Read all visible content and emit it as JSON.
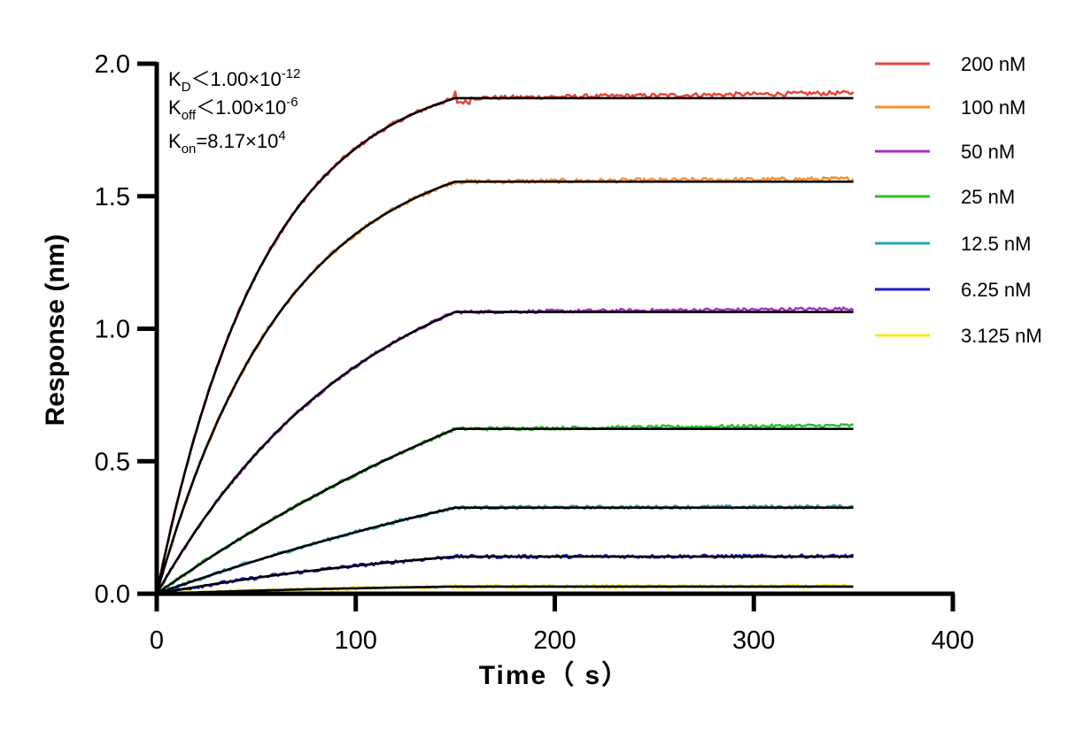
{
  "chart_data": {
    "type": "line",
    "title": "",
    "xlabel": "Time（ s）",
    "ylabel": "Response (nm)",
    "xlim": [
      0,
      400
    ],
    "ylim": [
      0,
      2.0
    ],
    "xticks": [
      "0",
      "100",
      "200",
      "300",
      "400"
    ],
    "yticks": [
      "0.0",
      "0.5",
      "1.0",
      "1.5",
      "2.0"
    ],
    "association_end": 150,
    "x_end": 350,
    "legend_position": "right",
    "annotations": {
      "kd": {
        "symbol": "K",
        "sub": "D",
        "rel": "<",
        "mantissa": "1.00×10",
        "exp": "-12"
      },
      "koff": {
        "symbol": "K",
        "sub": "off",
        "rel": "<",
        "mantissa": "1.00×10",
        "exp": "-6"
      },
      "kon": {
        "symbol": "K",
        "sub": "on",
        "rel": "=",
        "mantissa": "8.17×10",
        "exp": "4"
      }
    },
    "fit_color": "#000000",
    "series": [
      {
        "name": "200 nM",
        "color": "#e8463c",
        "plateau": 1.87,
        "k": 0.0185,
        "observed_end": 1.89
      },
      {
        "name": "100 nM",
        "color": "#f7902a",
        "plateau": 1.555,
        "k": 0.0155,
        "observed_end": 1.565
      },
      {
        "name": "50 nM",
        "color": "#a52dc9",
        "plateau": 1.063,
        "k": 0.0095,
        "observed_end": 1.075
      },
      {
        "name": "25 nM",
        "color": "#2bbf2b",
        "plateau": 0.622,
        "k": 0.0035,
        "observed_end": 0.635
      },
      {
        "name": "12.5 nM",
        "color": "#2aa3b5",
        "plateau": 0.325,
        "k": 0.003,
        "observed_end": 0.328
      },
      {
        "name": "6.25 nM",
        "color": "#1a1ad6",
        "plateau": 0.14,
        "k": 0.0055,
        "observed_end": 0.142
      },
      {
        "name": "3.125 nM",
        "color": "#f2ec1f",
        "plateau": 0.027,
        "k": 0.006,
        "observed_end": 0.028
      }
    ]
  }
}
